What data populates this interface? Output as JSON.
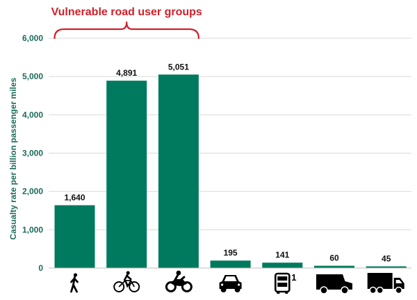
{
  "chart_data": {
    "type": "bar",
    "categories": [
      "pedestrian-icon",
      "cyclist-icon",
      "motorcyclist-icon",
      "car-icon",
      "bus-icon",
      "van-icon",
      "truck-icon"
    ],
    "values": [
      1640,
      4891,
      5051,
      195,
      141,
      60,
      45
    ],
    "value_labels": [
      "1,640",
      "4,891",
      "5,051",
      "195",
      "141",
      "60",
      "45"
    ],
    "ylabel": "Casualty rate per billion passenger miles",
    "ylim": [
      0,
      6000
    ],
    "yticks": [
      0,
      1000,
      2000,
      3000,
      4000,
      5000,
      6000
    ],
    "ytick_labels": [
      "0",
      "1,000",
      "2,000",
      "3,000",
      "4,000",
      "5,000",
      "6,000"
    ],
    "grid": true,
    "bar_color": "#007a5e",
    "grid_color": "#d9d9d9",
    "annotation": {
      "text": "Vulnerable road user groups",
      "spans_categories": [
        0,
        2
      ],
      "color": "#d0202a"
    },
    "bus_footnote": "1"
  }
}
